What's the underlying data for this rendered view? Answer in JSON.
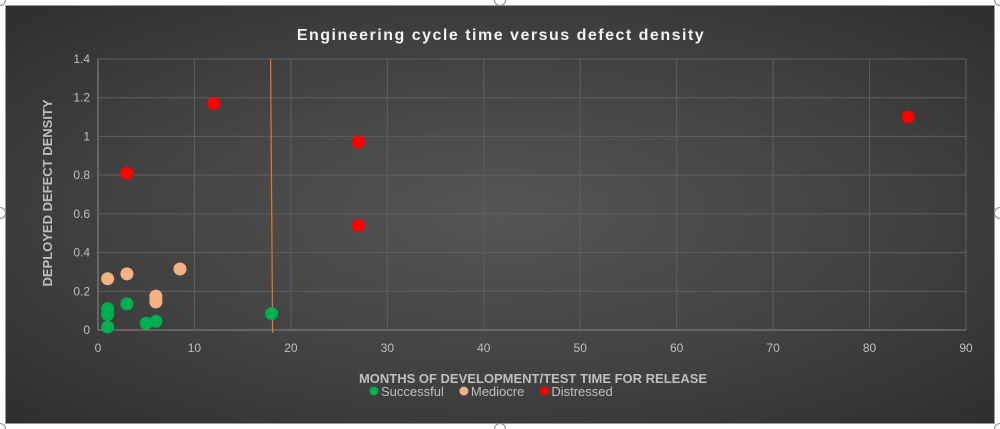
{
  "chart_data": {
    "type": "scatter",
    "title": "Engineering cycle time versus defect density",
    "xlabel": "MONTHS OF DEVELOPMENT/TEST TIME FOR RELEASE",
    "ylabel": "DEPLOYED DEFECT DENSITY",
    "xlim": [
      0,
      90
    ],
    "ylim": [
      0,
      1.4
    ],
    "xticks": [
      "0",
      "10",
      "20",
      "30",
      "40",
      "50",
      "60",
      "70",
      "80",
      "90"
    ],
    "yticks": [
      "0",
      "0.2",
      "0.4",
      "0.6",
      "0.8",
      "1",
      "1.2",
      "1.4"
    ],
    "grid": true,
    "legend_position": "bottom",
    "reference_line_x": 18,
    "reference_line_color": "#e07b24",
    "series": [
      {
        "name": "Successful",
        "color": "#00b050",
        "points": [
          [
            1,
            0.11
          ],
          [
            1,
            0.08
          ],
          [
            1,
            0.015
          ],
          [
            3,
            0.135
          ],
          [
            5,
            0.035
          ],
          [
            6,
            0.045
          ],
          [
            18,
            0.085
          ]
        ]
      },
      {
        "name": "Mediocre",
        "color": "#f4b183",
        "points": [
          [
            1,
            0.265
          ],
          [
            3,
            0.29
          ],
          [
            8.5,
            0.315
          ],
          [
            6,
            0.175
          ],
          [
            6,
            0.16
          ],
          [
            6,
            0.145
          ]
        ]
      },
      {
        "name": "Distressed",
        "color": "#ff0000",
        "points": [
          [
            3,
            0.81
          ],
          [
            12,
            1.17
          ],
          [
            27,
            0.97
          ],
          [
            27,
            0.54
          ],
          [
            84,
            1.1
          ]
        ]
      }
    ]
  }
}
